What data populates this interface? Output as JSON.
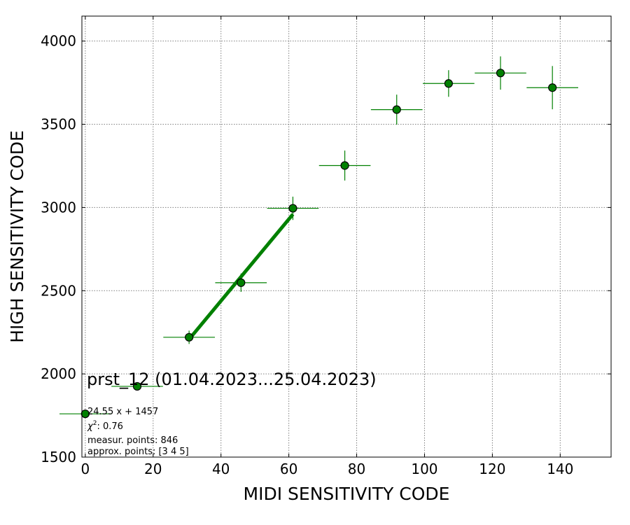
{
  "chart_data": {
    "type": "scatter",
    "title": "prst_12 (01.04.2023...25.04.2023)",
    "xlabel": "MIDI SENSITIVITY CODE",
    "ylabel": "HIGH SENSITIVITY CODE",
    "xlim": [
      -1,
      155
    ],
    "ylim": [
      1500,
      4150
    ],
    "xticks": [
      0,
      20,
      40,
      60,
      80,
      100,
      120,
      140
    ],
    "yticks": [
      1500,
      2000,
      2500,
      3000,
      3500,
      4000
    ],
    "grid": true,
    "colors": {
      "points": "#008000",
      "fit": "#008000",
      "marker_edge": "#000000"
    },
    "series": [
      {
        "x": [
          0,
          15.3,
          30.6,
          45.9,
          61.2,
          76.5,
          91.8,
          107.1,
          122.4,
          137.7
        ],
        "y": [
          1760,
          1925,
          2220,
          2548,
          2995,
          3252,
          3588,
          3745,
          3808,
          3720
        ],
        "xerr": [
          7.6,
          7.6,
          7.6,
          7.6,
          7.6,
          7.6,
          7.6,
          7.6,
          7.6,
          7.6
        ],
        "yerr": [
          5,
          10,
          40,
          55,
          70,
          90,
          90,
          80,
          100,
          130
        ]
      }
    ],
    "fit_line": {
      "x": [
        30.6,
        61.2
      ],
      "y": [
        2208,
        2959
      ],
      "label": "24.55 x + 1457"
    },
    "annotations": {
      "fit_equation": "24.55 x + 1457",
      "chi2_prefix": "χ",
      "chi2_sup": "2",
      "chi2_value": ": 0.76",
      "measur_points": "measur. points: 846",
      "approx_points": "approx. points: [3 4 5]"
    }
  }
}
